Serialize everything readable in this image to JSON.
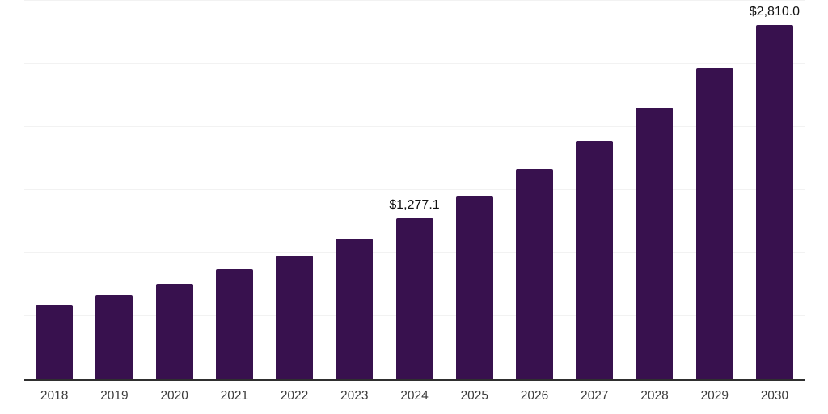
{
  "chart_data": {
    "type": "bar",
    "title": "",
    "xlabel": "",
    "ylabel": "",
    "categories": [
      "2018",
      "2019",
      "2020",
      "2021",
      "2022",
      "2023",
      "2024",
      "2025",
      "2026",
      "2027",
      "2028",
      "2029",
      "2030"
    ],
    "values": [
      588,
      666,
      756,
      870,
      980,
      1116,
      1277.1,
      1452,
      1664,
      1889,
      2152,
      2470,
      2810
    ],
    "value_labels": [
      "",
      "",
      "",
      "",
      "",
      "",
      "$1,277.1",
      "",
      "",
      "",
      "",
      "",
      "$2,810.0"
    ],
    "ylim": [
      0,
      3000
    ],
    "grid_step": 500,
    "grid": "horizontal",
    "legend": "none"
  },
  "style": {
    "bar_color": "#38114E",
    "axis_line_color": "#2F2F2F",
    "gridline_color": "#F2F2F2",
    "tick_label_color": "#3C3C3C",
    "value_label_color": "#111111",
    "background_color": "#FFFFFF"
  }
}
